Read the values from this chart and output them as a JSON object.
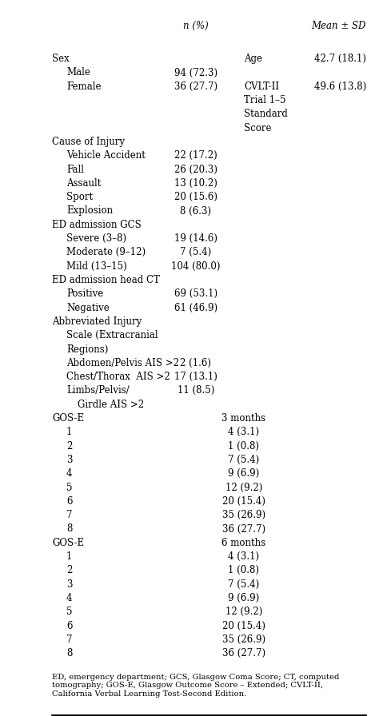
{
  "header_col2": "n (%)",
  "header_col3": "Mean ± SD",
  "bg_color": "#ffffff",
  "font_size": 8.5,
  "footer_text": "ED, emergency department; GCS, Glasgow Coma Score; CT, computed\ntomography; GOS-E, Glasgow Outcome Score – Extended; CVLT-II,\nCalifornia Verbal Learning Test-Second Edition.",
  "rows": [
    {
      "indent": 0,
      "label": "Sex",
      "col2": "",
      "col3_label": "Age",
      "col3_val": "42.7 (18.1)",
      "gos_val": ""
    },
    {
      "indent": 1,
      "label": "Male",
      "col2": "94 (72.3)",
      "col3_label": "",
      "col3_val": "",
      "gos_val": ""
    },
    {
      "indent": 1,
      "label": "Female",
      "col2": "36 (27.7)",
      "col3_label": "CVLT-II",
      "col3_val": "49.6 (13.8)",
      "gos_val": ""
    },
    {
      "indent": 1,
      "label": "",
      "col2": "",
      "col3_label": "Trial 1–5",
      "col3_val": "",
      "gos_val": ""
    },
    {
      "indent": 1,
      "label": "",
      "col2": "",
      "col3_label": "Standard",
      "col3_val": "",
      "gos_val": ""
    },
    {
      "indent": 1,
      "label": "",
      "col2": "",
      "col3_label": "Score",
      "col3_val": "",
      "gos_val": ""
    },
    {
      "indent": 0,
      "label": "Cause of Injury",
      "col2": "",
      "col3_label": "",
      "col3_val": "",
      "gos_val": ""
    },
    {
      "indent": 1,
      "label": "Vehicle Accident",
      "col2": "22 (17.2)",
      "col3_label": "",
      "col3_val": "",
      "gos_val": ""
    },
    {
      "indent": 1,
      "label": "Fall",
      "col2": "26 (20.3)",
      "col3_label": "",
      "col3_val": "",
      "gos_val": ""
    },
    {
      "indent": 1,
      "label": "Assault",
      "col2": "13 (10.2)",
      "col3_label": "",
      "col3_val": "",
      "gos_val": ""
    },
    {
      "indent": 1,
      "label": "Sport",
      "col2": "20 (15.6)",
      "col3_label": "",
      "col3_val": "",
      "gos_val": ""
    },
    {
      "indent": 1,
      "label": "Explosion",
      "col2": "8 (6.3)",
      "col3_label": "",
      "col3_val": "",
      "gos_val": ""
    },
    {
      "indent": 0,
      "label": "ED admission GCS",
      "col2": "",
      "col3_label": "",
      "col3_val": "",
      "gos_val": ""
    },
    {
      "indent": 1,
      "label": "Severe (3–8)",
      "col2": "19 (14.6)",
      "col3_label": "",
      "col3_val": "",
      "gos_val": ""
    },
    {
      "indent": 1,
      "label": "Moderate (9–12)",
      "col2": "7 (5.4)",
      "col3_label": "",
      "col3_val": "",
      "gos_val": ""
    },
    {
      "indent": 1,
      "label": "Mild (13–15)",
      "col2": "104 (80.0)",
      "col3_label": "",
      "col3_val": "",
      "gos_val": ""
    },
    {
      "indent": 0,
      "label": "ED admission head CT",
      "col2": "",
      "col3_label": "",
      "col3_val": "",
      "gos_val": ""
    },
    {
      "indent": 1,
      "label": "Positive",
      "col2": "69 (53.1)",
      "col3_label": "",
      "col3_val": "",
      "gos_val": ""
    },
    {
      "indent": 1,
      "label": "Negative",
      "col2": "61 (46.9)",
      "col3_label": "",
      "col3_val": "",
      "gos_val": ""
    },
    {
      "indent": 0,
      "label": "Abbreviated Injury",
      "col2": "",
      "col3_label": "",
      "col3_val": "",
      "gos_val": ""
    },
    {
      "indent": 1,
      "label": "Scale (Extracranial",
      "col2": "",
      "col3_label": "",
      "col3_val": "",
      "gos_val": ""
    },
    {
      "indent": 1,
      "label": "Regions)",
      "col2": "",
      "col3_label": "",
      "col3_val": "",
      "gos_val": ""
    },
    {
      "indent": 1,
      "label": "Abdomen/Pelvis AIS >2",
      "col2": "2 (1.6)",
      "col3_label": "",
      "col3_val": "",
      "gos_val": ""
    },
    {
      "indent": 1,
      "label": "Chest/Thorax  AIS >2",
      "col2": "17 (13.1)",
      "col3_label": "",
      "col3_val": "",
      "gos_val": ""
    },
    {
      "indent": 1,
      "label": "Limbs/Pelvis/",
      "col2": "11 (8.5)",
      "col3_label": "",
      "col3_val": "",
      "gos_val": ""
    },
    {
      "indent": 2,
      "label": "Girdle AIS >2",
      "col2": "",
      "col3_label": "",
      "col3_val": "",
      "gos_val": ""
    },
    {
      "indent": 0,
      "label": "GOS-E",
      "col2": "",
      "col3_label": "",
      "col3_val": "",
      "gos_val": "3 months"
    },
    {
      "indent": 1,
      "label": "1",
      "col2": "",
      "col3_label": "",
      "col3_val": "",
      "gos_val": "4 (3.1)"
    },
    {
      "indent": 1,
      "label": "2",
      "col2": "",
      "col3_label": "",
      "col3_val": "",
      "gos_val": "1 (0.8)"
    },
    {
      "indent": 1,
      "label": "3",
      "col2": "",
      "col3_label": "",
      "col3_val": "",
      "gos_val": "7 (5.4)"
    },
    {
      "indent": 1,
      "label": "4",
      "col2": "",
      "col3_label": "",
      "col3_val": "",
      "gos_val": "9 (6.9)"
    },
    {
      "indent": 1,
      "label": "5",
      "col2": "",
      "col3_label": "",
      "col3_val": "",
      "gos_val": "12 (9.2)"
    },
    {
      "indent": 1,
      "label": "6",
      "col2": "",
      "col3_label": "",
      "col3_val": "",
      "gos_val": "20 (15.4)"
    },
    {
      "indent": 1,
      "label": "7",
      "col2": "",
      "col3_label": "",
      "col3_val": "",
      "gos_val": "35 (26.9)"
    },
    {
      "indent": 1,
      "label": "8",
      "col2": "",
      "col3_label": "",
      "col3_val": "",
      "gos_val": "36 (27.7)"
    },
    {
      "indent": 0,
      "label": "GOS-E",
      "col2": "",
      "col3_label": "",
      "col3_val": "",
      "gos_val": "6 months"
    },
    {
      "indent": 1,
      "label": "1",
      "col2": "",
      "col3_label": "",
      "col3_val": "",
      "gos_val": "4 (3.1)"
    },
    {
      "indent": 1,
      "label": "2",
      "col2": "",
      "col3_label": "",
      "col3_val": "",
      "gos_val": "1 (0.8)"
    },
    {
      "indent": 1,
      "label": "3",
      "col2": "",
      "col3_label": "",
      "col3_val": "",
      "gos_val": "7 (5.4)"
    },
    {
      "indent": 1,
      "label": "4",
      "col2": "",
      "col3_label": "",
      "col3_val": "",
      "gos_val": "9 (6.9)"
    },
    {
      "indent": 1,
      "label": "5",
      "col2": "",
      "col3_label": "",
      "col3_val": "",
      "gos_val": "12 (9.2)"
    },
    {
      "indent": 1,
      "label": "6",
      "col2": "",
      "col3_label": "",
      "col3_val": "",
      "gos_val": "20 (15.4)"
    },
    {
      "indent": 1,
      "label": "7",
      "col2": "",
      "col3_label": "",
      "col3_val": "",
      "gos_val": "35 (26.9)"
    },
    {
      "indent": 1,
      "label": "8",
      "col2": "",
      "col3_label": "",
      "col3_val": "",
      "gos_val": "36 (27.7)"
    }
  ]
}
